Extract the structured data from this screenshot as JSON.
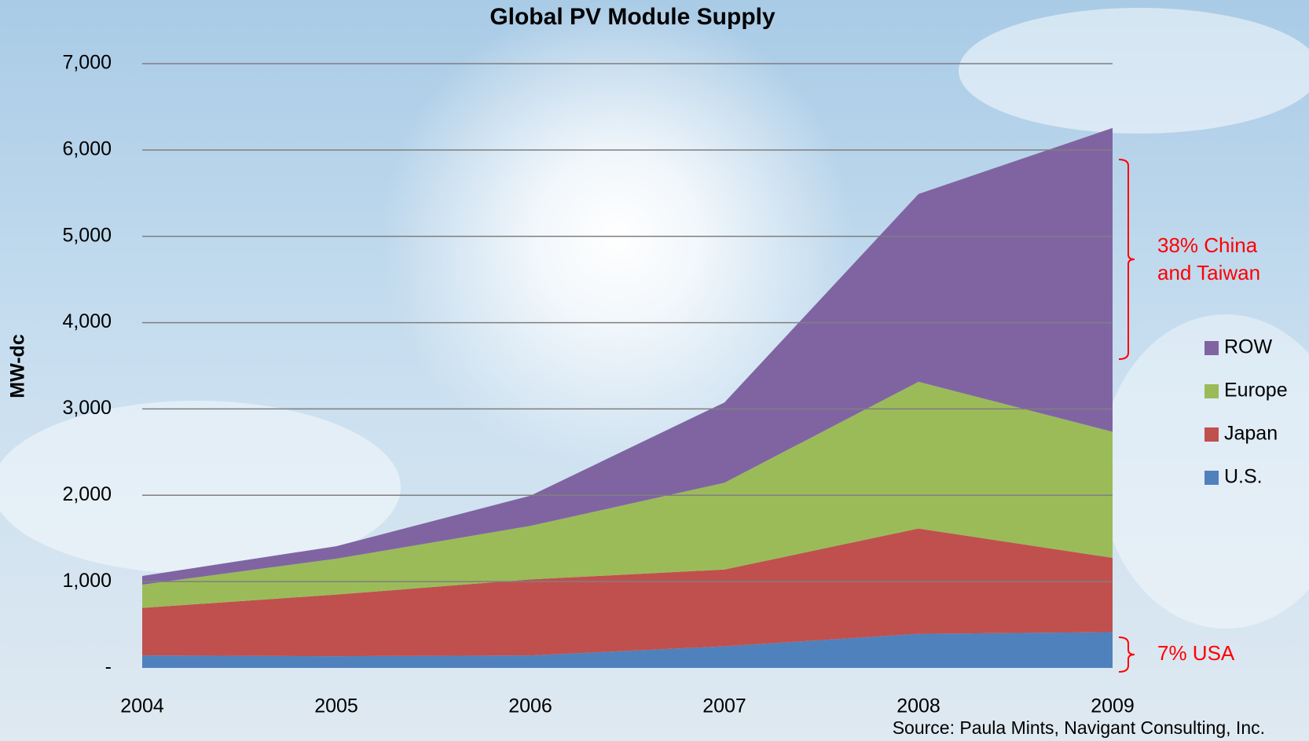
{
  "chart_data": {
    "type": "stacked_area",
    "title": "Global PV Module Supply",
    "y_label": "MW-dc",
    "categories": [
      "2004",
      "2005",
      "2006",
      "2007",
      "2008",
      "2009"
    ],
    "series": [
      {
        "name": "U.S.",
        "color": "#4f81bd",
        "values": [
          145,
          135,
          145,
          250,
          395,
          415
        ]
      },
      {
        "name": "Japan",
        "color": "#c0504d",
        "values": [
          550,
          715,
          880,
          890,
          1220,
          860
        ]
      },
      {
        "name": "Europe",
        "color": "#9bbb59",
        "values": [
          270,
          415,
          620,
          1005,
          1700,
          1460
        ]
      },
      {
        "name": "ROW",
        "color": "#8064a2",
        "values": [
          100,
          145,
          350,
          930,
          2175,
          3520
        ]
      }
    ],
    "ylim": [
      0,
      7000
    ],
    "yticks": [
      {
        "value": 0,
        "label": "-"
      },
      {
        "value": 1000,
        "label": "1,000"
      },
      {
        "value": 2000,
        "label": "2,000"
      },
      {
        "value": 3000,
        "label": "3,000"
      },
      {
        "value": 4000,
        "label": "4,000"
      },
      {
        "value": 5000,
        "label": "5,000"
      },
      {
        "value": 6000,
        "label": "6,000"
      },
      {
        "value": 7000,
        "label": "7,000"
      }
    ],
    "grid": true,
    "annotations": [
      {
        "lines": [
          "38% China",
          "and Taiwan"
        ],
        "color": "#ff0000"
      },
      {
        "lines": [
          "7% USA"
        ],
        "color": "#ff0000"
      }
    ],
    "source": "Source: Paula Mints, Navigant Consulting, Inc."
  }
}
